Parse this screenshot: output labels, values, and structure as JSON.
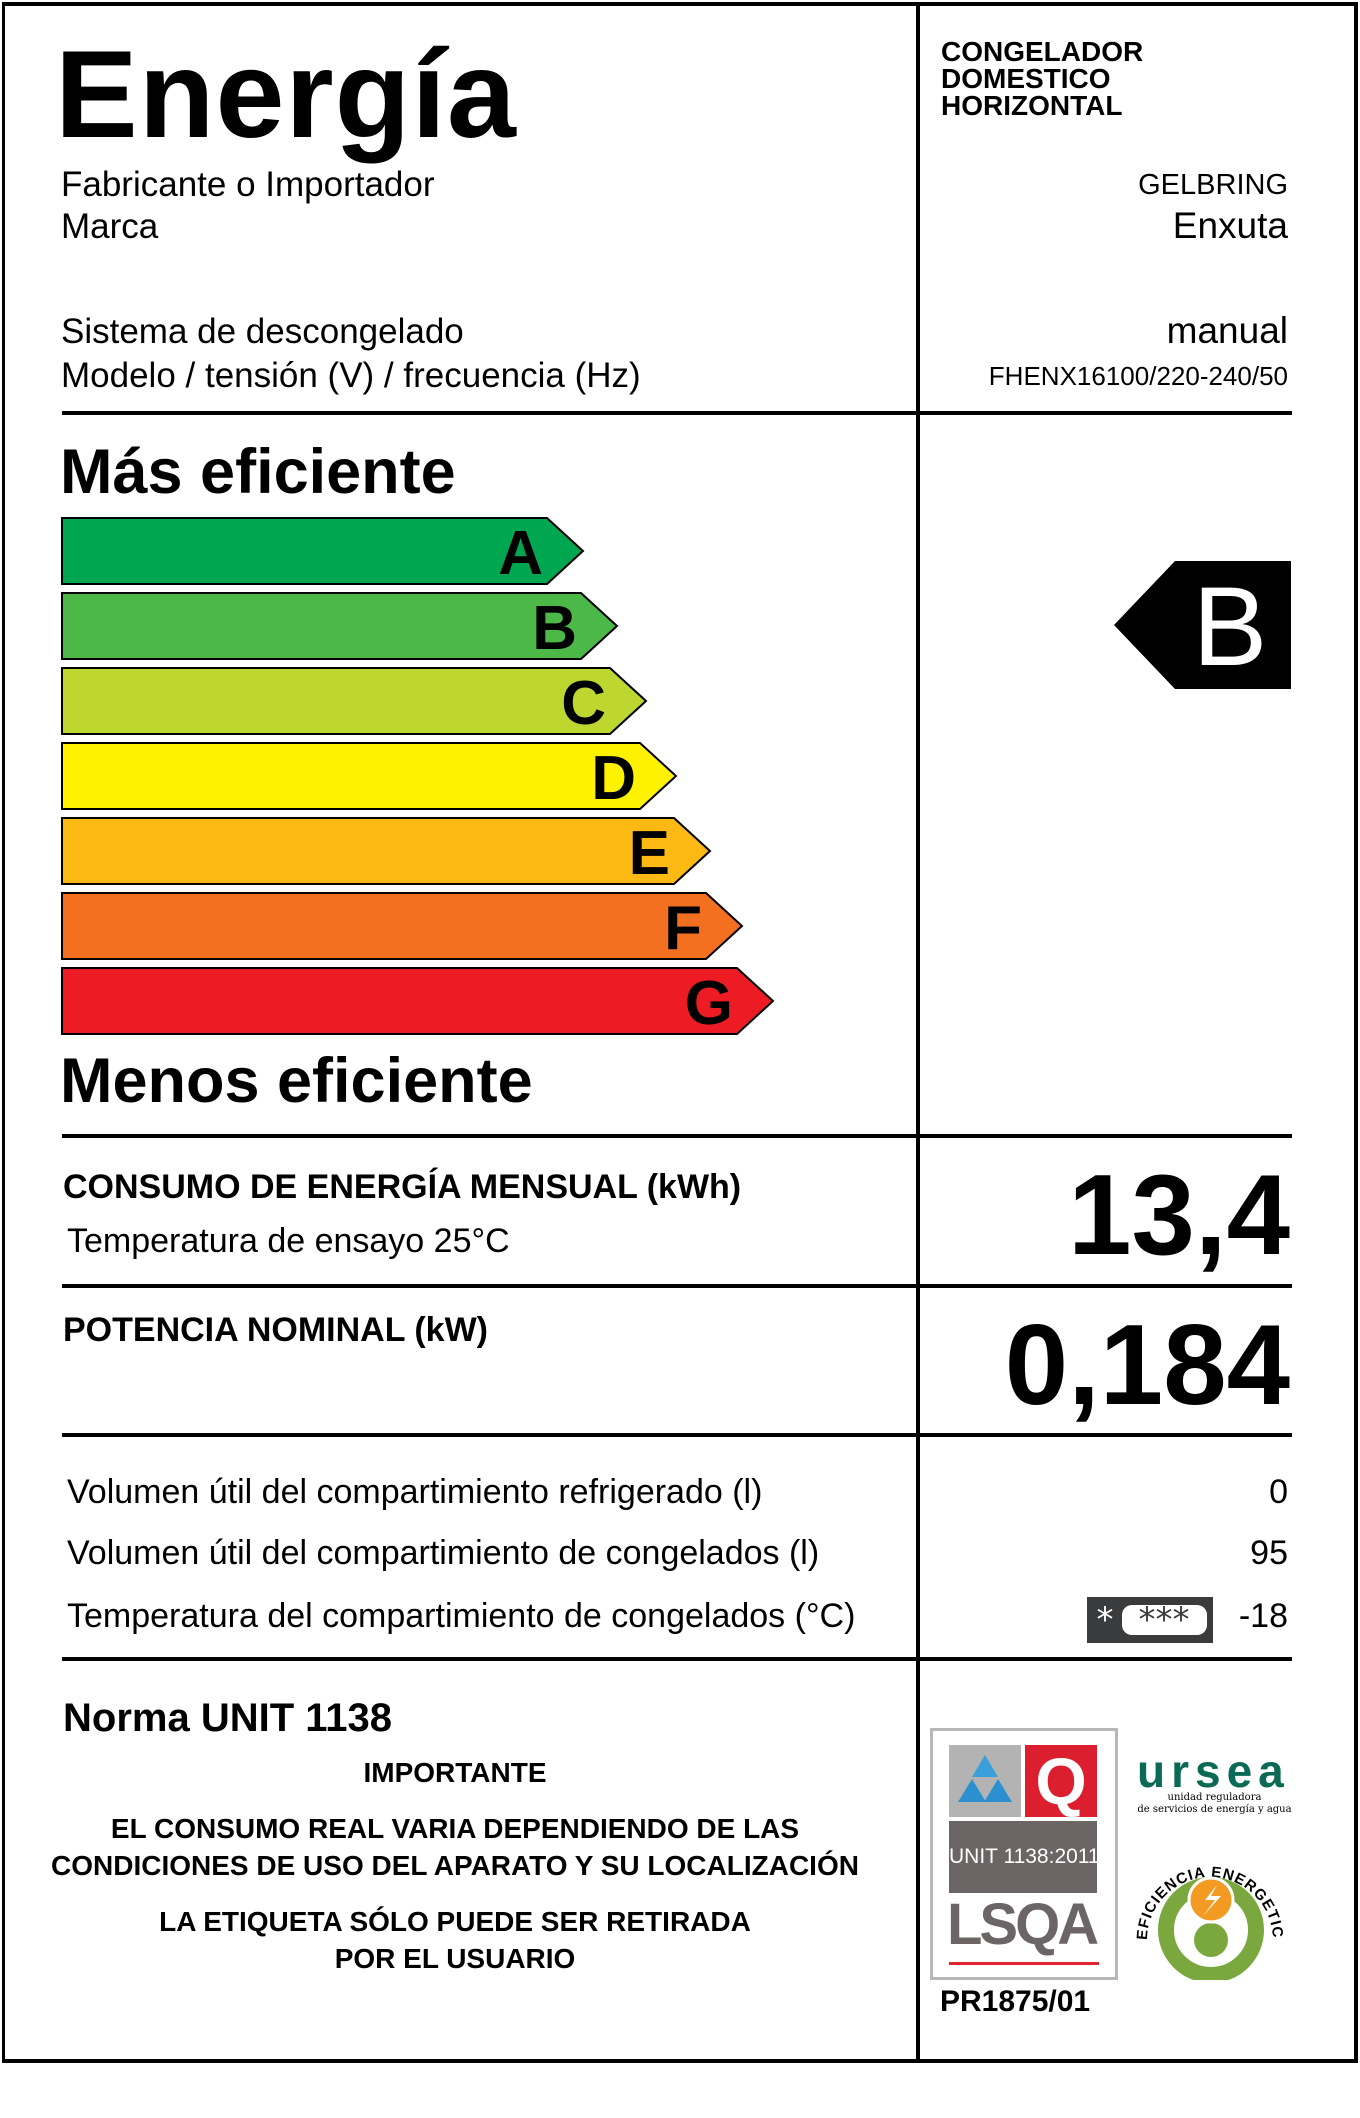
{
  "header": {
    "title": "Energía",
    "manufacturer_label": "Fabricante o Importador",
    "brand_label": "Marca",
    "defrost_label": "Sistema de descongelado",
    "model_label": "Modelo / tensión (V) / frecuencia (Hz)",
    "appliance_type": [
      "CONGELADOR",
      "DOMESTICO",
      "HORIZONTAL"
    ],
    "manufacturer": "GELBRING",
    "brand": "Enxuta",
    "defrost": "manual",
    "model": "FHENX16100/220-240/50"
  },
  "scale": {
    "top_label": "Más eficiente",
    "bottom_label": "Menos eficiente",
    "classes": [
      {
        "letter": "A",
        "color": "#00a650"
      },
      {
        "letter": "B",
        "color": "#4cb848"
      },
      {
        "letter": "C",
        "color": "#bed630"
      },
      {
        "letter": "D",
        "color": "#fff200"
      },
      {
        "letter": "E",
        "color": "#fdb913"
      },
      {
        "letter": "F",
        "color": "#f37021"
      },
      {
        "letter": "G",
        "color": "#ed1c24"
      }
    ],
    "rating": "B"
  },
  "consumption": {
    "label": "CONSUMO DE ENERGÍA MENSUAL (kWh)",
    "sublabel": "Temperatura de ensayo 25°C",
    "value": "13,4"
  },
  "power": {
    "label": "POTENCIA NOMINAL (kW)",
    "value": "0,184"
  },
  "volumes": [
    {
      "label": "Volumen útil del compartimiento refrigerado (l)",
      "value": "0"
    },
    {
      "label": "Volumen útil del compartimiento de congelados (l)",
      "value": "95"
    },
    {
      "label": "Temperatura del compartimiento de congelados (°C)",
      "value": "-18",
      "icon": "four-star-freezer-icon"
    }
  ],
  "footer": {
    "norma": "Norma UNIT 1138",
    "important": "IMPORTANTE",
    "note1": [
      "EL CONSUMO REAL VARIA DEPENDIENDO DE LAS",
      "CONDICIONES DE USO DEL APARATO Y SU LOCALIZACIÓN"
    ],
    "note2": [
      "LA ETIQUETA SÓLO PUEDE SER RETIRADA",
      "POR EL USUARIO"
    ],
    "cert_standard": "UNIT 1138:2011",
    "cert_logo": "LSQA",
    "cert_code": "PR1875/01",
    "regulator_logo": "ursea",
    "regulator_sub": [
      "unidad reguladora",
      "de servicios de energía y agua"
    ],
    "seal_text": "EFICIENCIA ENERGETICA"
  }
}
